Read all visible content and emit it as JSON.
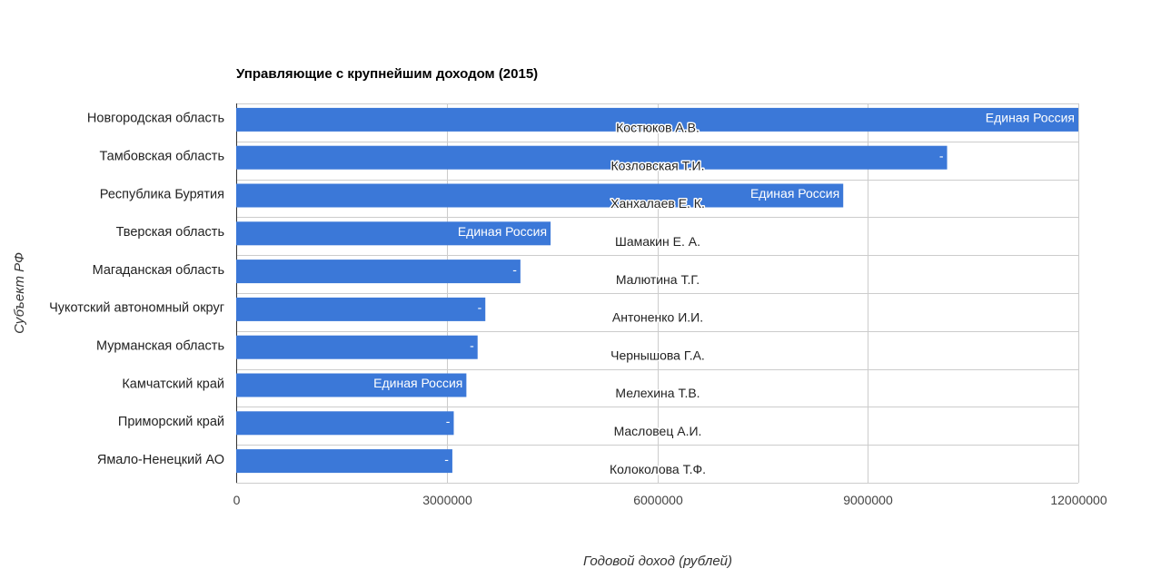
{
  "chart_data": {
    "type": "bar",
    "orientation": "horizontal",
    "title": "Управляющие с крупнейшим доходом (2015)",
    "xlabel": "Годовой доход (рублей)",
    "ylabel": "Субъект РФ",
    "xlim": [
      0,
      12000000
    ],
    "xticks": [
      "0",
      "3000000",
      "6000000",
      "9000000",
      "12000000"
    ],
    "grid": true,
    "colors": {
      "bar": "#3b78d8"
    },
    "categories": [
      "Новгородская область",
      "Тамбовская область",
      "Республика Бурятия",
      "Тверская область",
      "Магаданская область",
      "Чукотский автономный округ",
      "Мурманская область",
      "Камчатский край",
      "Приморский край",
      "Ямало-Ненецкий АО"
    ],
    "values": [
      12000000,
      10130000,
      8650000,
      4480000,
      4050000,
      3550000,
      3440000,
      3280000,
      3100000,
      3080000
    ],
    "bar_labels": [
      "Единая Россия",
      "-",
      "Единая Россия",
      "Единая Россия",
      "-",
      "-",
      "-",
      "Единая Россия",
      "-",
      "-"
    ],
    "name_labels": [
      "Костюков А.В.",
      "Козловская Т.И.",
      "Ханхалаев Е. К.",
      "Шамакин Е. А.",
      "Малютина Т.Г.",
      "Антоненко И.И.",
      "Чернышова Г.А.",
      "Мелехина Т.В.",
      "Масловец А.И.",
      "Колоколова Т.Ф."
    ]
  }
}
